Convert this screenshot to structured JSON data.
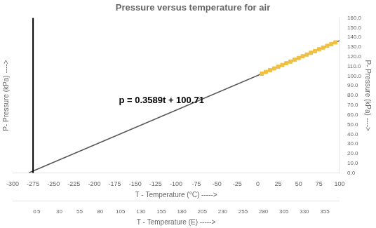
{
  "chart_data": {
    "type": "scatter",
    "title": "Pressure versus temperature for air",
    "x_label": "T - Temperature (°C) ----->",
    "x2_label": "T - Temperature (E) ----->",
    "y_label": "P- Pressure (kPa) ---->",
    "xlim": [
      -300,
      100
    ],
    "xticks": [
      -300,
      -275,
      -250,
      -225,
      -200,
      -175,
      -150,
      -125,
      -100,
      -75,
      -50,
      -25,
      0,
      25,
      50,
      75,
      100
    ],
    "x2lim": [
      -27,
      373
    ],
    "x2ticks": [
      0,
      5,
      30,
      55,
      80,
      105,
      130,
      155,
      180,
      205,
      230,
      255,
      280,
      305,
      330,
      355
    ],
    "ylim": [
      0,
      160
    ],
    "yticks": [
      {
        "value": 0,
        "label": "0.0"
      },
      {
        "value": 10,
        "label": "10.0"
      },
      {
        "value": 20,
        "label": "20.0"
      },
      {
        "value": 30,
        "label": "30.0"
      },
      {
        "value": 40,
        "label": "40.0"
      },
      {
        "value": 50,
        "label": "50.0"
      },
      {
        "value": 60,
        "label": "60.0"
      },
      {
        "value": 70,
        "label": "70.0"
      },
      {
        "value": 80,
        "label": "80.0"
      },
      {
        "value": 90,
        "label": "90.0"
      },
      {
        "value": 100,
        "label": "100.0"
      },
      {
        "value": 110,
        "label": "110.0"
      },
      {
        "value": 120,
        "label": "120.0"
      },
      {
        "value": 130,
        "label": "130.0"
      },
      {
        "value": 140,
        "label": "140.0"
      },
      {
        "value": 150,
        "label": "150.0"
      },
      {
        "value": 160,
        "label": "160.0"
      }
    ],
    "grid": false,
    "series": [
      {
        "type": "line",
        "color": "#555555",
        "x": [
          -280,
          100
        ],
        "values": [
          0.218,
          136.6
        ]
      },
      {
        "type": "scatter",
        "color": "#f0c040",
        "marker": "square",
        "x": [
          5,
          10,
          15,
          20,
          25,
          30,
          35,
          40,
          45,
          50,
          55,
          60,
          65,
          70,
          75,
          80,
          85,
          90,
          95
        ],
        "values": [
          102.5045,
          104.299,
          106.0935,
          107.888,
          109.6825,
          111.477,
          113.2715,
          115.066,
          116.8605,
          118.655,
          120.4495,
          122.244,
          124.0385,
          125.833,
          127.6275,
          129.422,
          131.2165,
          133.011,
          134.8055
        ]
      }
    ],
    "vertical_line": -275,
    "annotations": [
      {
        "text": "p = 0.3589t + 100.71",
        "x": -170,
        "y": 72
      }
    ]
  }
}
